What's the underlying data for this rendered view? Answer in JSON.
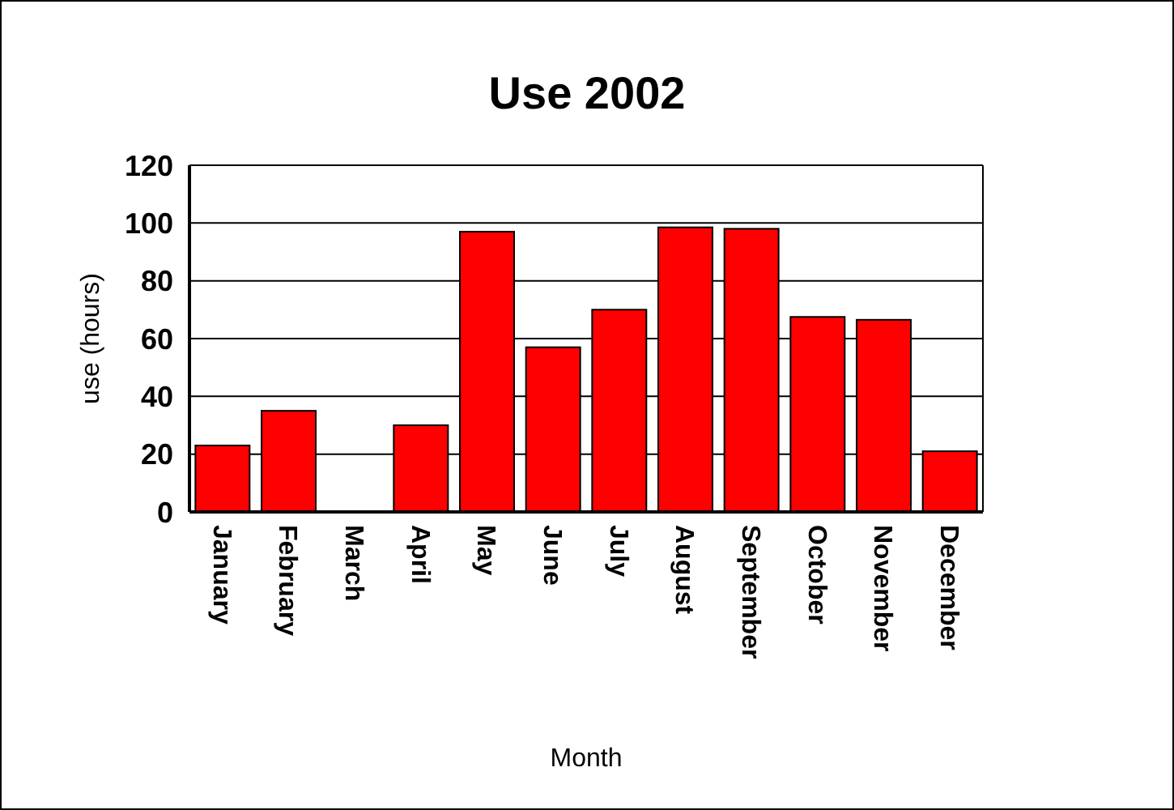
{
  "chart_data": {
    "type": "bar",
    "title": "Use 2002",
    "xlabel": "Month",
    "ylabel": "use (hours)",
    "categories": [
      "January",
      "February",
      "March",
      "April",
      "May",
      "June",
      "July",
      "August",
      "September",
      "October",
      "November",
      "December"
    ],
    "values": [
      23,
      35,
      0,
      30,
      97,
      57,
      70,
      98.5,
      98,
      67.5,
      66.5,
      21
    ],
    "color": "#ff0000",
    "ylim": [
      0,
      120
    ],
    "yticks": [
      0,
      20,
      40,
      60,
      80,
      100,
      120
    ],
    "grid": "y"
  }
}
